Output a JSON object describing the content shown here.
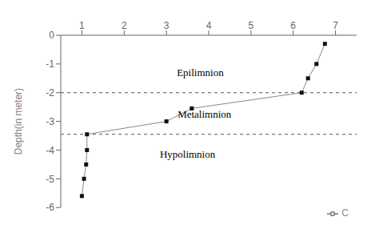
{
  "chart_data": {
    "type": "line",
    "x": [
      1.0,
      1.05,
      1.1,
      1.12,
      1.12,
      3.0,
      3.6,
      6.2,
      6.35,
      6.55,
      6.75
    ],
    "series": [
      {
        "name": "C",
        "color": "#888888",
        "marker": "square",
        "marker_color": "#111111",
        "values": [
          -5.6,
          -5.0,
          -4.5,
          -4.0,
          -3.45,
          -3.0,
          -2.55,
          -2.0,
          -1.5,
          -1.0,
          -0.3
        ]
      }
    ],
    "xlim": [
      0.5,
      7.5
    ],
    "ylim": [
      -6.0,
      0.0
    ],
    "xticks": [
      1,
      2,
      3,
      4,
      5,
      6,
      7
    ],
    "yticks": [
      0,
      -1,
      -2,
      -3,
      -4,
      -5,
      -6
    ],
    "ylabel": "Depth(in meter)",
    "hlines": {
      "values": [
        -2.0,
        -3.45
      ],
      "color": "#555555",
      "line_style": "dashed"
    },
    "annotations": [
      {
        "text": "Epilimnion",
        "x": 3.8,
        "y": -1.3
      },
      {
        "text": "Metalimnion",
        "x": 3.9,
        "y": -2.75
      },
      {
        "text": "Hypolimnion",
        "x": 3.5,
        "y": -4.15
      }
    ],
    "legend": "lower right",
    "grid": false
  }
}
